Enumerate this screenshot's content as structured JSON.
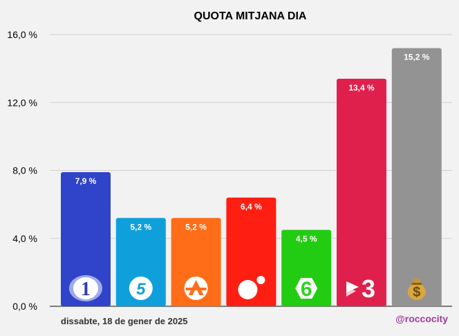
{
  "chart_data": {
    "type": "bar",
    "title": "QUOTA MITJANA DIA",
    "categories": [
      "La 1",
      "Telecinco",
      "Antena 3",
      "Cuatro",
      "La Sexta",
      "TV3",
      "Others"
    ],
    "values": [
      7.9,
      5.2,
      5.2,
      6.4,
      4.5,
      13.4,
      15.2
    ],
    "value_labels": [
      "7,9 %",
      "5,2 %",
      "5,2 %",
      "6,4 %",
      "4,5 %",
      "13,4 %",
      "15,2 %"
    ],
    "colors": [
      "#2f44c9",
      "#0fa0db",
      "#ff6d18",
      "#ff1f12",
      "#22cc12",
      "#e0204c",
      "#939393"
    ],
    "icons": [
      "la1-logo-icon",
      "telecinco-logo-icon",
      "antena3-logo-icon",
      "cuatro-logo-icon",
      "lasexta-logo-icon",
      "tv3-logo-icon",
      "money-bag-icon"
    ],
    "ylim": [
      0,
      16
    ],
    "yticks": [
      0,
      4,
      8,
      12,
      16
    ],
    "ytick_labels": [
      "0,0 %",
      "4,0 %",
      "8,0 %",
      "12,0 %",
      "16,0 %"
    ],
    "grid": true,
    "xlabel": "",
    "ylabel": ""
  },
  "footer": {
    "date": "dissabte, 18 de gener de 2025",
    "credit": "@roccocity"
  }
}
